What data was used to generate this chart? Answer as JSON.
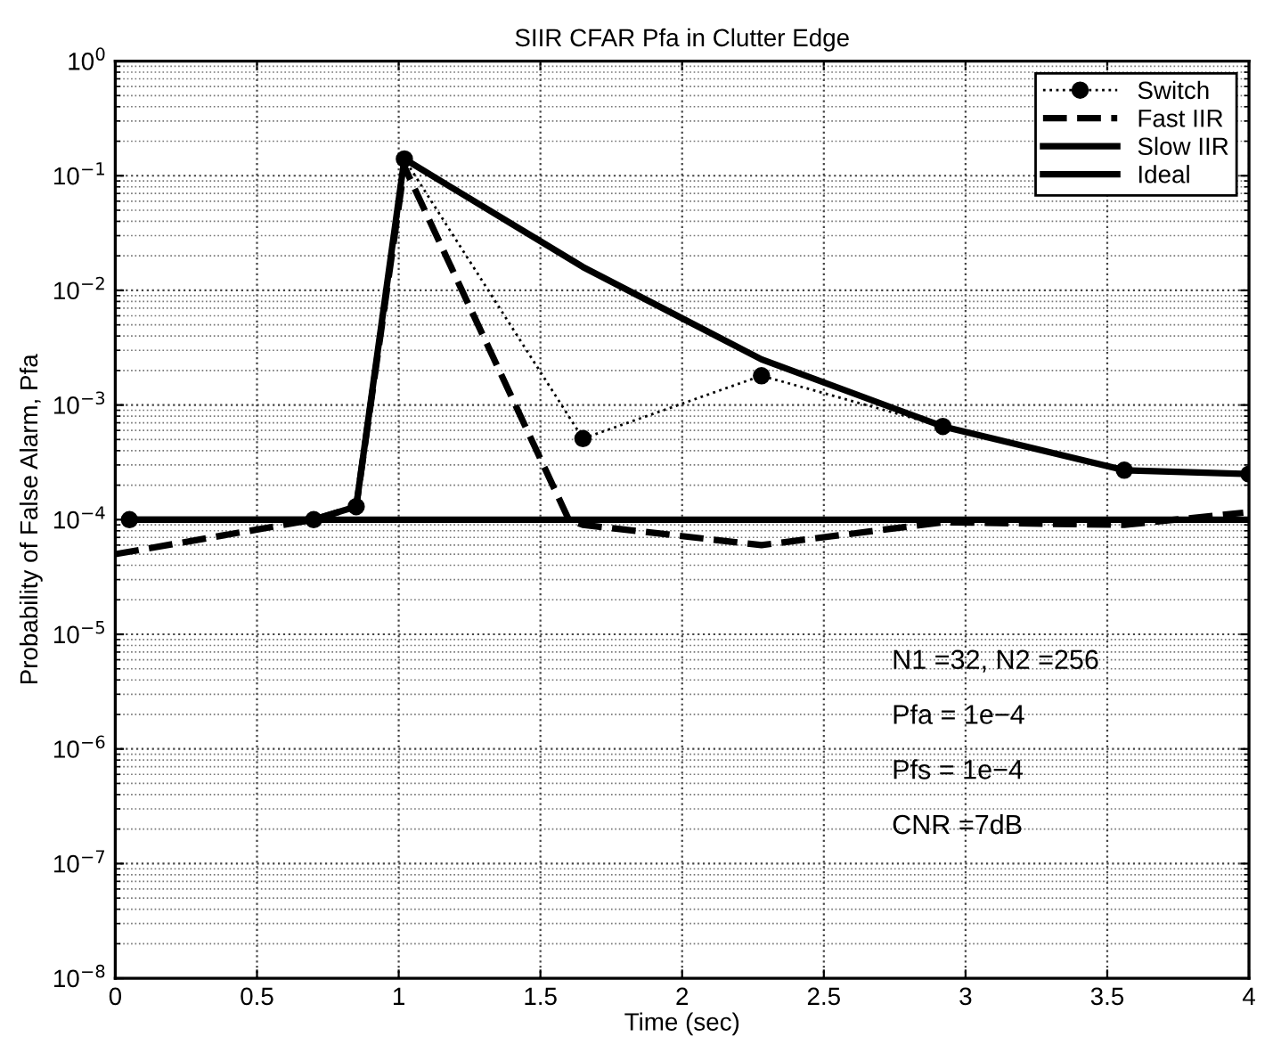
{
  "chart_data": {
    "type": "line",
    "title": "SIIR CFAR Pfa in Clutter Edge",
    "xlabel": "Time (sec)",
    "ylabel": "Probability of False Alarm, Pfa",
    "log": "y",
    "xlim": [
      0,
      4
    ],
    "ylim": [
      1e-08,
      1
    ],
    "xticks": [
      0,
      0.5,
      1,
      1.5,
      2,
      2.5,
      3,
      3.5,
      4
    ],
    "yticks": [
      {
        "value": 1e-08,
        "label": "10$^{−8}$"
      },
      {
        "value": 1e-07,
        "label": "10$^{−7}$"
      },
      {
        "value": 1e-06,
        "label": "10$^{−6}$"
      },
      {
        "value": 1e-05,
        "label": "10$^{−5}$"
      },
      {
        "value": 0.0001,
        "label": "10$^{−4}$"
      },
      {
        "value": 0.001,
        "label": "10$^{−3}$"
      },
      {
        "value": 0.01,
        "label": "10$^{−2}$"
      },
      {
        "value": 0.1,
        "label": "10$^{−1}$"
      },
      {
        "value": 1,
        "label": "10$^{0}$"
      }
    ],
    "grid": true,
    "legend": "top right",
    "series": [
      {
        "name": "Switch",
        "color": "#000000",
        "line_style": "dotted",
        "marker": "circle",
        "x": [
          0.05,
          0.7,
          0.85,
          1.02,
          1.65,
          2.28,
          2.92,
          3.56,
          4.0
        ],
        "values": [
          0.0001,
          0.0001,
          0.00013,
          0.14,
          0.00051,
          0.0018,
          0.00065,
          0.00027,
          0.00025
        ]
      },
      {
        "name": "Fast IIR",
        "color": "#000000",
        "line_style": "dashed",
        "marker": "none",
        "x": [
          0.0,
          0.7,
          0.85,
          1.02,
          1.6,
          1.65,
          2.28,
          2.92,
          3.56,
          3.98
        ],
        "values": [
          5e-05,
          0.0001,
          0.00013,
          0.12,
          0.0001,
          9e-05,
          6e-05,
          9.5e-05,
          9e-05,
          0.000115
        ]
      },
      {
        "name": "Slow IIR",
        "color": "#000000",
        "line_style": "solid",
        "marker": "none",
        "x": [
          0.05,
          0.7,
          0.85,
          1.02,
          1.65,
          2.28,
          2.92,
          3.56,
          4.0
        ],
        "values": [
          0.0001,
          0.0001,
          0.00013,
          0.14,
          0.016,
          0.0025,
          0.00065,
          0.00027,
          0.00025
        ]
      },
      {
        "name": "Ideal",
        "color": "#000000",
        "line_style": "solid",
        "marker": "none",
        "x": [
          0.05,
          4.0
        ],
        "values": [
          0.0001,
          0.0001
        ]
      }
    ],
    "annotations": [
      "N1 =32, N2 =256",
      "Pfa = 1e−4",
      "Pfs = 1e−4",
      "CNR =7dB"
    ]
  }
}
